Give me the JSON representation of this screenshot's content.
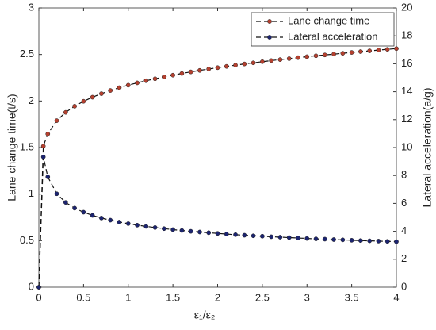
{
  "chart_data": {
    "type": "line",
    "xlabel": "ε₁/ε₂",
    "ylabel": "Lane change time(t/s)",
    "y2label": "Lateral acceleration(a/g)",
    "x": [
      0,
      0.05,
      0.1,
      0.2,
      0.3,
      0.4,
      0.5,
      0.6,
      0.7,
      0.8,
      0.9,
      1.0,
      1.1,
      1.2,
      1.3,
      1.4,
      1.5,
      1.6,
      1.7,
      1.8,
      1.9,
      2.0,
      2.1,
      2.2,
      2.3,
      2.4,
      2.5,
      2.6,
      2.7,
      2.8,
      2.9,
      3.0,
      3.1,
      3.2,
      3.3,
      3.4,
      3.5,
      3.6,
      3.7,
      3.8,
      3.9,
      4.0
    ],
    "series": [
      {
        "name": "Lane change time",
        "color": "#b5402f",
        "axis": "y",
        "values": [
          0,
          1.515,
          1.646,
          1.789,
          1.878,
          1.944,
          1.997,
          2.041,
          2.079,
          2.113,
          2.143,
          2.17,
          2.195,
          2.218,
          2.239,
          2.259,
          2.278,
          2.296,
          2.313,
          2.329,
          2.344,
          2.358,
          2.372,
          2.385,
          2.398,
          2.41,
          2.422,
          2.434,
          2.445,
          2.455,
          2.466,
          2.476,
          2.486,
          2.495,
          2.504,
          2.513,
          2.522,
          2.531,
          2.539,
          2.547,
          2.555,
          2.563
        ]
      },
      {
        "name": "Lateral acceleration",
        "color": "#1c2470",
        "axis": "y2",
        "values": [
          0,
          9.33,
          7.9,
          6.69,
          6.07,
          5.66,
          5.37,
          5.14,
          4.95,
          4.8,
          4.66,
          4.55,
          4.44,
          4.35,
          4.27,
          4.19,
          4.12,
          4.06,
          4.0,
          3.95,
          3.9,
          3.85,
          3.8,
          3.76,
          3.72,
          3.68,
          3.65,
          3.61,
          3.58,
          3.55,
          3.52,
          3.49,
          3.46,
          3.44,
          3.41,
          3.39,
          3.36,
          3.34,
          3.32,
          3.3,
          3.28,
          3.26
        ]
      }
    ],
    "xlim": [
      0,
      4
    ],
    "xticks": [
      0,
      0.5,
      1,
      1.5,
      2,
      2.5,
      3,
      3.5,
      4
    ],
    "ylim": [
      0,
      3
    ],
    "yticks": [
      0,
      0.5,
      1,
      1.5,
      2,
      2.5,
      3
    ],
    "y2lim": [
      0,
      20
    ],
    "y2ticks": [
      0,
      2,
      4,
      6,
      8,
      10,
      12,
      14,
      16,
      18,
      20
    ],
    "legend": "top-right",
    "grid": false
  }
}
